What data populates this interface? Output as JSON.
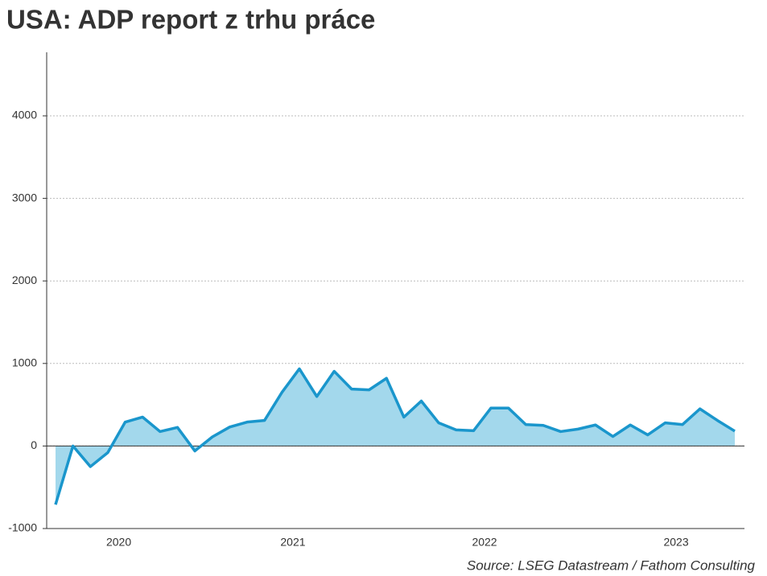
{
  "chart_data": {
    "type": "area",
    "title": "USA: ADP report z trhu práce",
    "source": "Source: LSEG Datastream / Fathom Consulting",
    "categories": [
      null,
      null,
      null,
      null,
      "2020",
      null,
      null,
      null,
      null,
      null,
      null,
      null,
      null,
      null,
      "2021",
      null,
      null,
      null,
      null,
      null,
      null,
      null,
      null,
      null,
      null,
      "2022",
      null,
      null,
      null,
      null,
      null,
      null,
      null,
      null,
      null,
      null,
      "2023",
      null,
      null,
      null
    ],
    "values": [
      -710,
      0,
      -250,
      -80,
      290,
      350,
      175,
      225,
      -60,
      110,
      230,
      290,
      310,
      650,
      935,
      600,
      905,
      690,
      680,
      820,
      350,
      545,
      280,
      195,
      185,
      460,
      460,
      260,
      250,
      175,
      205,
      255,
      115,
      255,
      135,
      280,
      260,
      450,
      310,
      180
    ],
    "color": "#1a96cc",
    "fill_color": "#a3d8ec",
    "ylim": [
      -1000,
      4770
    ],
    "yticks": [
      -1000,
      0,
      1000,
      2000,
      3000,
      4000
    ],
    "grid": true
  }
}
